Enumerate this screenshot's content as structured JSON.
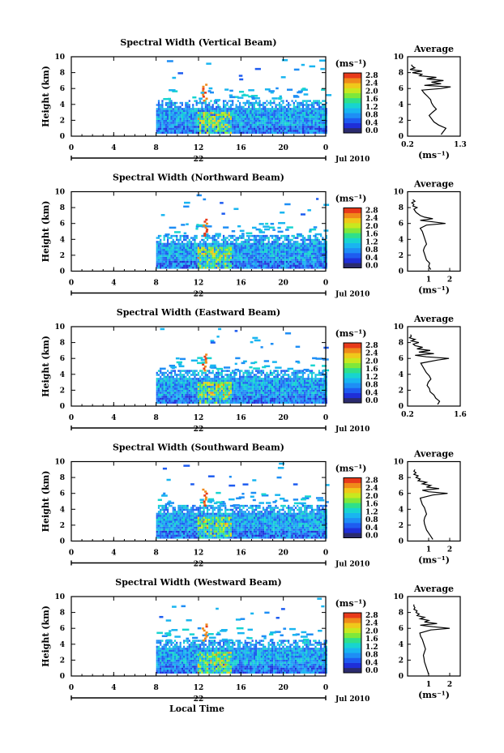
{
  "figure": {
    "xlabel": "Local Time",
    "date_label": "Jul 2010",
    "day_label": "22",
    "colorbar_unit": "(ms⁻¹)",
    "colorbar_ticks": [
      "0.0",
      "0.4",
      "0.8",
      "1.2",
      "1.6",
      "2.0",
      "2.4",
      "2.8"
    ],
    "colorbar_colors": [
      "#2b2b6e",
      "#1f2fd8",
      "#1e5cf0",
      "#1e8ef5",
      "#19b5f0",
      "#17d4d0",
      "#2fe08a",
      "#7fe83a",
      "#c8e81f",
      "#f0c81a",
      "#f08a1a",
      "#e83a1a"
    ]
  },
  "chart_data": [
    {
      "type": "heatmap",
      "title": "Spectral Width (Vertical Beam)",
      "ylabel": "Height (km)",
      "xlim": [
        0,
        24
      ],
      "ylim": [
        0,
        10
      ],
      "xticks": [
        "0",
        "4",
        "8",
        "12",
        "16",
        "20",
        "0"
      ],
      "yticks": [
        "0",
        "2",
        "4",
        "6",
        "8",
        "10"
      ],
      "profile": {
        "title": "Average",
        "xlabel": "(ms⁻¹)",
        "xlim": [
          0.2,
          1.3
        ],
        "xticks": [
          "0.2",
          "1.3"
        ],
        "height": [
          0.2,
          0.6,
          1,
          1.4,
          1.8,
          2.2,
          2.6,
          3,
          3.4,
          3.8,
          4.2,
          4.6,
          5,
          5.4,
          5.8,
          6,
          6.2,
          6.4,
          6.6,
          6.8,
          7,
          7.2,
          7.4,
          7.6,
          7.8,
          8,
          8.2,
          8.4,
          8.6,
          8.8,
          9
        ],
        "values": [
          0.9,
          0.95,
          1.0,
          0.85,
          0.75,
          0.7,
          0.65,
          0.72,
          0.8,
          0.74,
          0.7,
          0.68,
          0.62,
          0.55,
          0.5,
          0.9,
          1.1,
          0.55,
          0.9,
          0.7,
          0.95,
          0.6,
          0.8,
          0.45,
          0.5,
          0.3,
          0.5,
          0.25,
          0.35,
          0.3,
          0.28
        ]
      }
    },
    {
      "type": "heatmap",
      "title": "Spectral Width (Northward Beam)",
      "ylabel": "Height (km)",
      "xlim": [
        0,
        24
      ],
      "ylim": [
        0,
        10
      ],
      "xticks": [
        "0",
        "4",
        "8",
        "12",
        "16",
        "20",
        "0"
      ],
      "yticks": [
        "0",
        "2",
        "4",
        "6",
        "8",
        "10"
      ],
      "profile": {
        "title": "Average",
        "xlabel": "(ms⁻¹)",
        "xlim": [
          0,
          2.5
        ],
        "xticks": [
          "1",
          "2"
        ],
        "height": [
          0.2,
          0.6,
          1,
          1.4,
          1.8,
          2.2,
          2.6,
          3,
          3.4,
          3.8,
          4.2,
          4.6,
          5,
          5.4,
          5.8,
          6,
          6.2,
          6.4,
          6.6,
          6.8,
          7,
          7.2,
          7.4,
          7.6,
          7.8,
          8,
          8.2,
          8.4,
          8.6,
          8.8,
          9
        ],
        "values": [
          1.1,
          1.0,
          1.05,
          0.9,
          0.85,
          0.8,
          0.75,
          0.8,
          0.9,
          0.85,
          0.8,
          0.75,
          0.7,
          0.6,
          0.9,
          1.8,
          1.2,
          0.6,
          1.2,
          0.8,
          0.6,
          0.5,
          0.4,
          0.35,
          0.3,
          0.45,
          0.25,
          0.3,
          0.2,
          0.35,
          0.25
        ]
      }
    },
    {
      "type": "heatmap",
      "title": "Spectral Width (Eastward Beam)",
      "ylabel": "Height (km)",
      "xlim": [
        0,
        24
      ],
      "ylim": [
        0,
        10
      ],
      "xticks": [
        "0",
        "4",
        "8",
        "12",
        "16",
        "20",
        "0"
      ],
      "yticks": [
        "0",
        "2",
        "4",
        "6",
        "8",
        "10"
      ],
      "profile": {
        "title": "Average",
        "xlabel": "",
        "xlim": [
          0.2,
          1.6
        ],
        "xticks": [
          "0.2",
          "1.6"
        ],
        "height": [
          0.2,
          0.6,
          1,
          1.4,
          1.8,
          2.2,
          2.6,
          3,
          3.4,
          3.8,
          4.2,
          4.6,
          5,
          5.4,
          5.8,
          6,
          6.2,
          6.4,
          6.6,
          6.8,
          7,
          7.2,
          7.4,
          7.6,
          7.8,
          8,
          8.2,
          8.4,
          8.6,
          8.8,
          9
        ],
        "values": [
          1.0,
          1.05,
          0.95,
          0.9,
          0.8,
          0.78,
          0.72,
          0.75,
          0.82,
          0.78,
          0.7,
          0.65,
          0.6,
          0.55,
          1.0,
          1.3,
          0.7,
          0.4,
          0.9,
          0.5,
          0.8,
          0.45,
          0.6,
          0.4,
          0.35,
          0.5,
          0.3,
          0.4,
          0.25,
          0.3,
          0.28
        ]
      }
    },
    {
      "type": "heatmap",
      "title": "Spectral Width (Southward Beam)",
      "ylabel": "Height (km)",
      "xlim": [
        0,
        24
      ],
      "ylim": [
        0,
        10
      ],
      "xticks": [
        "0",
        "4",
        "8",
        "12",
        "16",
        "20",
        "0"
      ],
      "yticks": [
        "0",
        "2",
        "4",
        "6",
        "8",
        "10"
      ],
      "profile": {
        "title": "Average",
        "xlabel": "(ms⁻¹)",
        "xlim": [
          0,
          2.5
        ],
        "xticks": [
          "1",
          "2"
        ],
        "height": [
          0.2,
          0.6,
          1,
          1.4,
          1.8,
          2.2,
          2.6,
          3,
          3.4,
          3.8,
          4.2,
          4.6,
          5,
          5.4,
          5.8,
          6,
          6.2,
          6.4,
          6.6,
          6.8,
          7,
          7.2,
          7.4,
          7.6,
          7.8,
          8,
          8.2,
          8.4,
          8.6,
          8.8,
          9
        ],
        "values": [
          1.2,
          1.1,
          1.0,
          0.9,
          0.85,
          0.8,
          0.78,
          0.82,
          0.9,
          0.85,
          0.8,
          0.7,
          0.65,
          0.6,
          1.2,
          1.9,
          1.0,
          0.7,
          1.5,
          0.9,
          1.1,
          0.7,
          0.9,
          0.5,
          0.6,
          0.4,
          0.5,
          0.3,
          0.4,
          0.3,
          0.35
        ]
      }
    },
    {
      "type": "heatmap",
      "title": "Spectral Width (Westward Beam)",
      "ylabel": "Height (km)",
      "xlim": [
        0,
        24
      ],
      "ylim": [
        0,
        10
      ],
      "xticks": [
        "0",
        "4",
        "8",
        "12",
        "16",
        "20",
        "0"
      ],
      "yticks": [
        "0",
        "2",
        "4",
        "6",
        "8",
        "10"
      ],
      "profile": {
        "title": "Average",
        "xlabel": "(ms⁻¹)",
        "xlim": [
          0,
          2.5
        ],
        "xticks": [
          "1",
          "2"
        ],
        "height": [
          0.2,
          0.6,
          1,
          1.4,
          1.8,
          2.2,
          2.6,
          3,
          3.4,
          3.8,
          4.2,
          4.6,
          5,
          5.4,
          5.8,
          6,
          6.2,
          6.4,
          6.6,
          6.8,
          7,
          7.2,
          7.4,
          7.6,
          7.8,
          8,
          8.2,
          8.4,
          8.6,
          8.8,
          9
        ],
        "values": [
          1.0,
          0.95,
          0.9,
          0.85,
          0.8,
          0.78,
          0.75,
          0.8,
          0.85,
          0.8,
          0.75,
          0.7,
          0.62,
          0.58,
          1.1,
          2.0,
          1.2,
          0.6,
          1.4,
          0.8,
          1.0,
          0.6,
          0.8,
          0.45,
          0.55,
          0.4,
          0.45,
          0.3,
          0.35,
          0.3,
          0.3
        ]
      }
    }
  ]
}
